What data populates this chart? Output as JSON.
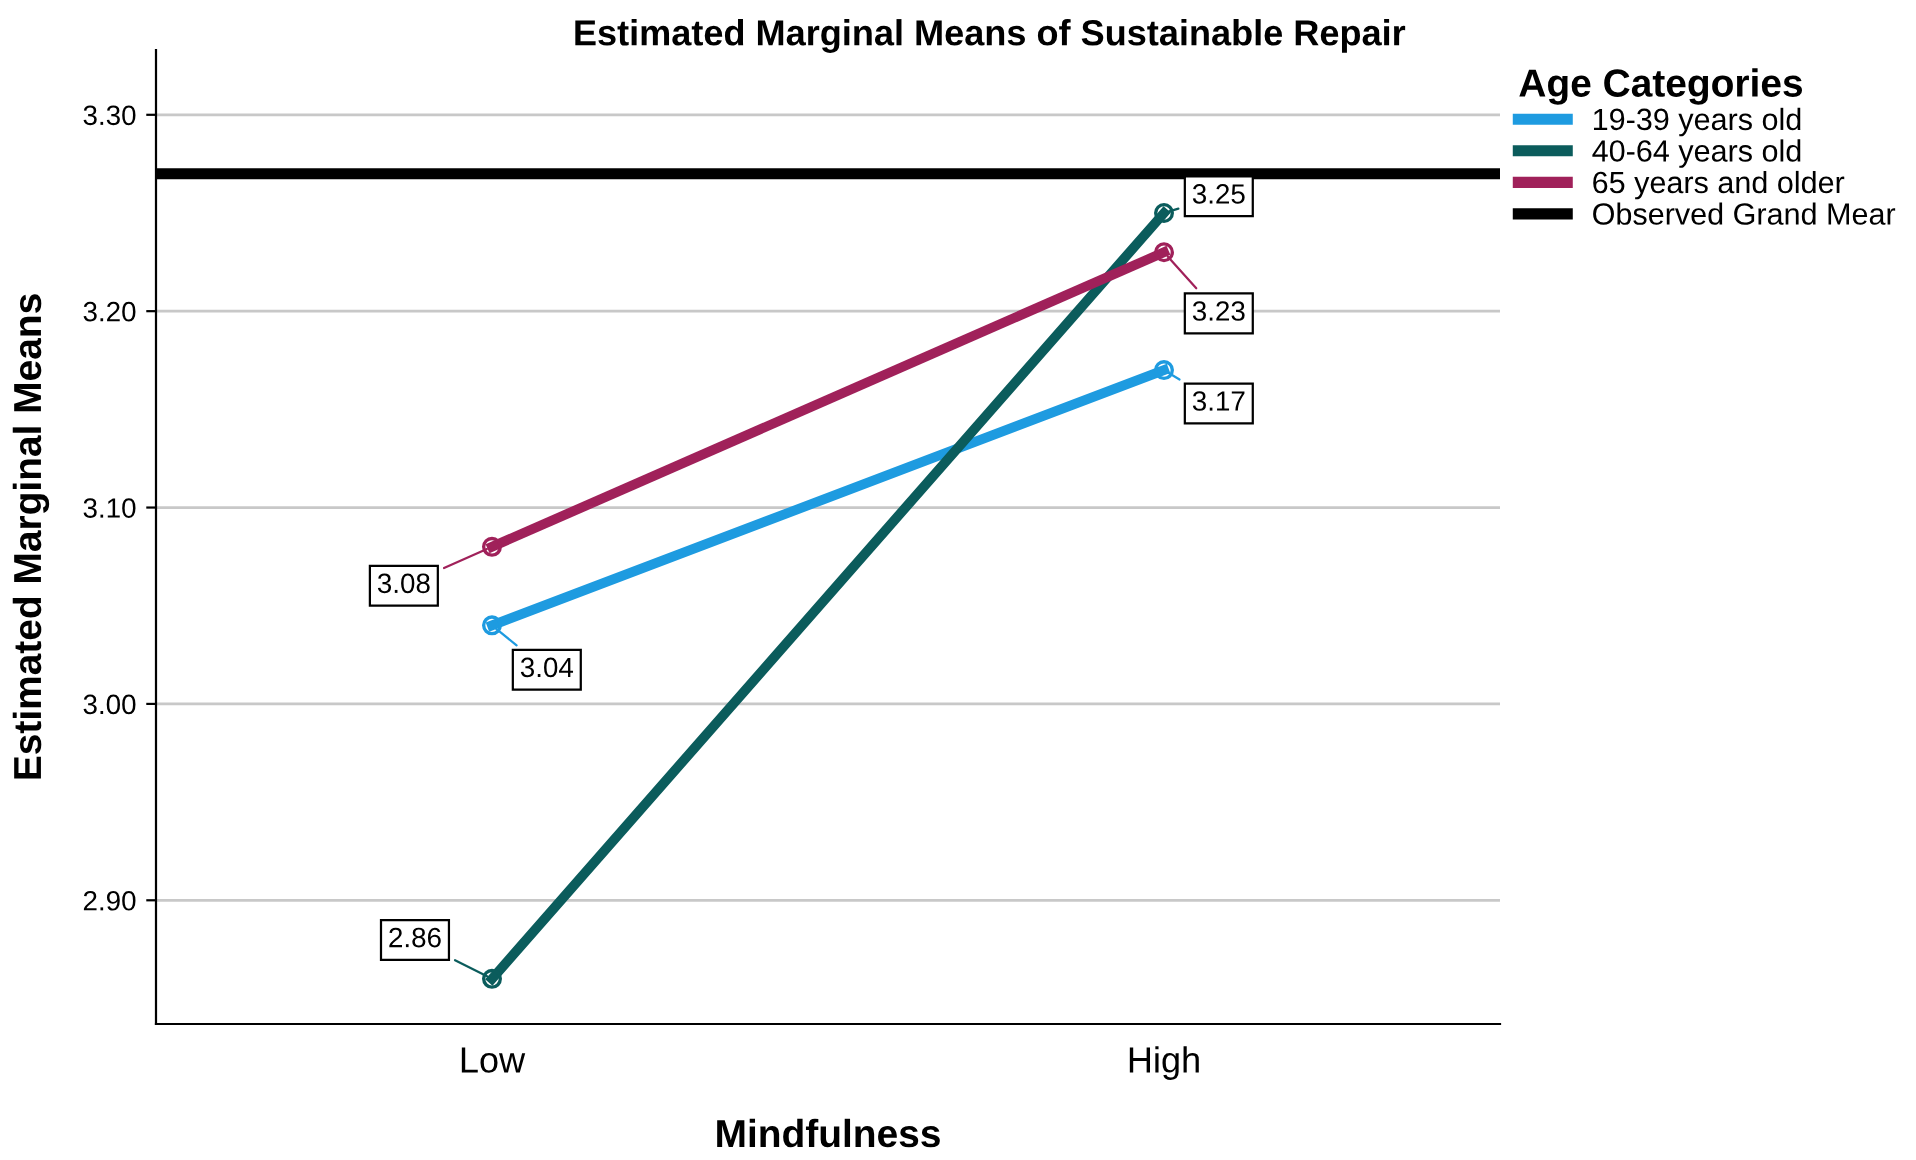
{
  "chart_data": {
    "type": "line",
    "title": "Estimated Marginal Means of Sustainable Repair",
    "xlabel": "Mindfulness",
    "ylabel": "Estimated Marginal Means",
    "legend_title": "Age Categories",
    "categories": [
      "Low",
      "High"
    ],
    "series": [
      {
        "name": "19-39 years old",
        "color": "#1e9be0",
        "values": [
          3.04,
          3.17
        ]
      },
      {
        "name": "40-64 years old",
        "color": "#0b5c5c",
        "values": [
          2.86,
          3.25
        ]
      },
      {
        "name": "65 years and older",
        "color": "#a0215a",
        "values": [
          3.08,
          3.23
        ]
      }
    ],
    "ref_lines": [
      {
        "axis": "y",
        "value": 3.27,
        "label": "Observed Grand Mear",
        "color": "#000000"
      }
    ],
    "ylim": [
      2.837,
      3.333
    ],
    "yticks": [
      {
        "value": 2.9,
        "label": "2.90"
      },
      {
        "value": 3.0,
        "label": "3.00"
      },
      {
        "value": 3.1,
        "label": "3.10"
      },
      {
        "value": 3.2,
        "label": "3.20"
      },
      {
        "value": 3.3,
        "label": "3.30"
      }
    ],
    "grid": "y",
    "legend": "right",
    "marker": "circle",
    "line_style": "solid",
    "data_labels": true
  }
}
